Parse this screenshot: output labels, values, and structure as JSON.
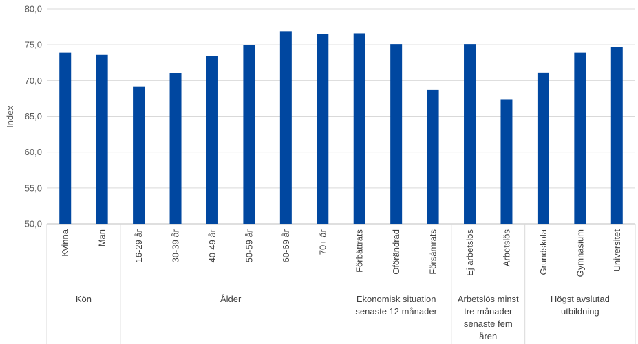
{
  "chart_data": {
    "type": "bar",
    "ylabel": "Index",
    "ylim": [
      50,
      80
    ],
    "ytick_step": 5,
    "ytick_labels": [
      "50,0",
      "55,0",
      "60,0",
      "65,0",
      "70,0",
      "75,0",
      "80,0"
    ],
    "grid": true,
    "bar_color": "#0047A0",
    "categories": [
      "Kvinna",
      "Man",
      "16-29 år",
      "30-39 år",
      "40-49 år",
      "50-59 år",
      "60-69 år",
      "70+ år",
      "Förbättrats",
      "Oförändrad",
      "Försämrats",
      "Ej arbetslös",
      "Arbetslös",
      "Grundskola",
      "Gymnasium",
      "Universitet"
    ],
    "values": [
      73.9,
      73.6,
      69.2,
      71.0,
      73.4,
      75.0,
      76.9,
      76.5,
      76.6,
      75.1,
      68.7,
      75.1,
      67.4,
      71.1,
      73.9,
      74.7
    ],
    "groups": [
      {
        "lines": [
          "Kön"
        ],
        "count": 2
      },
      {
        "lines": [
          "Ålder"
        ],
        "count": 6
      },
      {
        "lines": [
          "Ekonomisk situation",
          "senaste 12 månader"
        ],
        "count": 3
      },
      {
        "lines": [
          "Arbetslös minst",
          "tre månader",
          "senaste fem",
          "åren"
        ],
        "count": 2
      },
      {
        "lines": [
          "Högst avslutad",
          "utbildning"
        ],
        "count": 3
      }
    ]
  }
}
